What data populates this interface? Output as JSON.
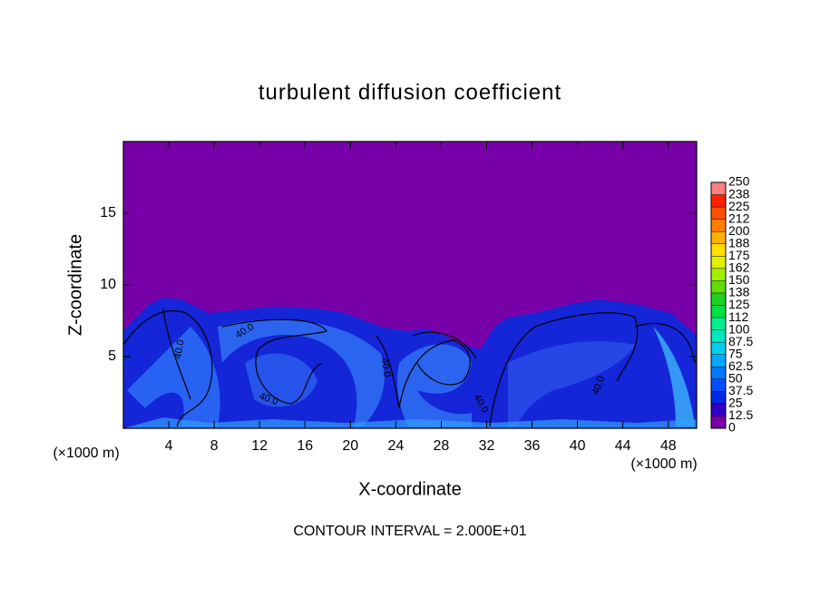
{
  "chart_data": {
    "type": "contour",
    "title": "turbulent diffusion coefficient",
    "x_label": "X-coordinate",
    "y_label": "Z-coordinate",
    "x_unit": "(×1000 m)",
    "x_unit_right": "(×1000 m)",
    "footer": "CONTOUR INTERVAL = 2.000E+01",
    "contour_labels": [
      "40.0",
      "40.0",
      "40.0",
      "40.0",
      "40.0",
      "40.0"
    ],
    "xlim": [
      0,
      50.5
    ],
    "ylim": [
      0,
      20
    ],
    "xticks": [
      4,
      8,
      12,
      16,
      20,
      24,
      28,
      32,
      36,
      40,
      44,
      48
    ],
    "yticks": [
      5,
      10,
      15
    ],
    "colorbar": {
      "levels": [
        0,
        12.5,
        25,
        37.5,
        50,
        62.5,
        75,
        87.5,
        100,
        {
          "value": 112.5,
          "label": "112"
        },
        125,
        {
          "value": 137.5,
          "label": "138"
        },
        150,
        {
          "value": 162.5,
          "label": "162"
        },
        175,
        {
          "value": 187.5,
          "label": "188"
        },
        200,
        {
          "value": 212.5,
          "label": "212"
        },
        225,
        {
          "value": 237.5,
          "label": "238"
        },
        250
      ],
      "colors": [
        "#7800a8",
        "#3000c8",
        "#0028e8",
        "#0050ff",
        "#0078ff",
        "#00a8ff",
        "#00d0f0",
        "#00e8c0",
        "#00f090",
        "#00e040",
        "#20d020",
        "#60e000",
        "#a0f000",
        "#e0f000",
        "#ffe000",
        "#ffb000",
        "#ff8000",
        "#ff5000",
        "#ff2000",
        "#ff8080"
      ]
    }
  }
}
